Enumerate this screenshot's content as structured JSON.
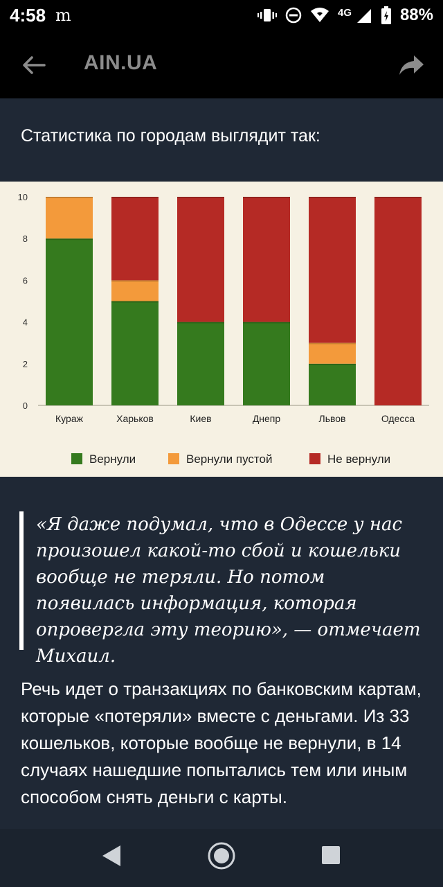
{
  "status_bar": {
    "time": "4:58",
    "notification_icon": "m-icon",
    "network": "4G",
    "battery": "88%"
  },
  "app_bar": {
    "title": "AIN.UA"
  },
  "article": {
    "lead": "Статистика по городам выглядит так:",
    "quote": "«Я даже подумал, что в Одессе у нас произошел какой-то сбой и кошельки вообще не теряли. Но потом появилась информация, которая опровергла эту теорию», — отмечает Михаил.",
    "body": "Речь идет о транзакциях по банковским картам, которые «потеряли» вместе с деньгами. Из 33 кошельков, которые вообще не вернули, в 14 случаях нашедшие попытались тем или иным способом снять деньги с карты."
  },
  "chart_data": {
    "type": "bar",
    "stacked": true,
    "categories": [
      "Кураж",
      "Харьков",
      "Киев",
      "Днепр",
      "Львов",
      "Одесса"
    ],
    "series": [
      {
        "name": "Вернули",
        "color": "#357a1e",
        "values": [
          8,
          5,
          4,
          4,
          2,
          0
        ]
      },
      {
        "name": "Вернули пустой",
        "color": "#f39a3b",
        "values": [
          2,
          1,
          0,
          0,
          1,
          0
        ]
      },
      {
        "name": "Не вернули",
        "color": "#b52a25",
        "values": [
          0,
          4,
          6,
          6,
          7,
          10
        ]
      }
    ],
    "ylim": [
      0,
      10
    ],
    "yticks": [
      0,
      2,
      4,
      6,
      8,
      10
    ],
    "grid": false,
    "legend_position": "bottom"
  }
}
